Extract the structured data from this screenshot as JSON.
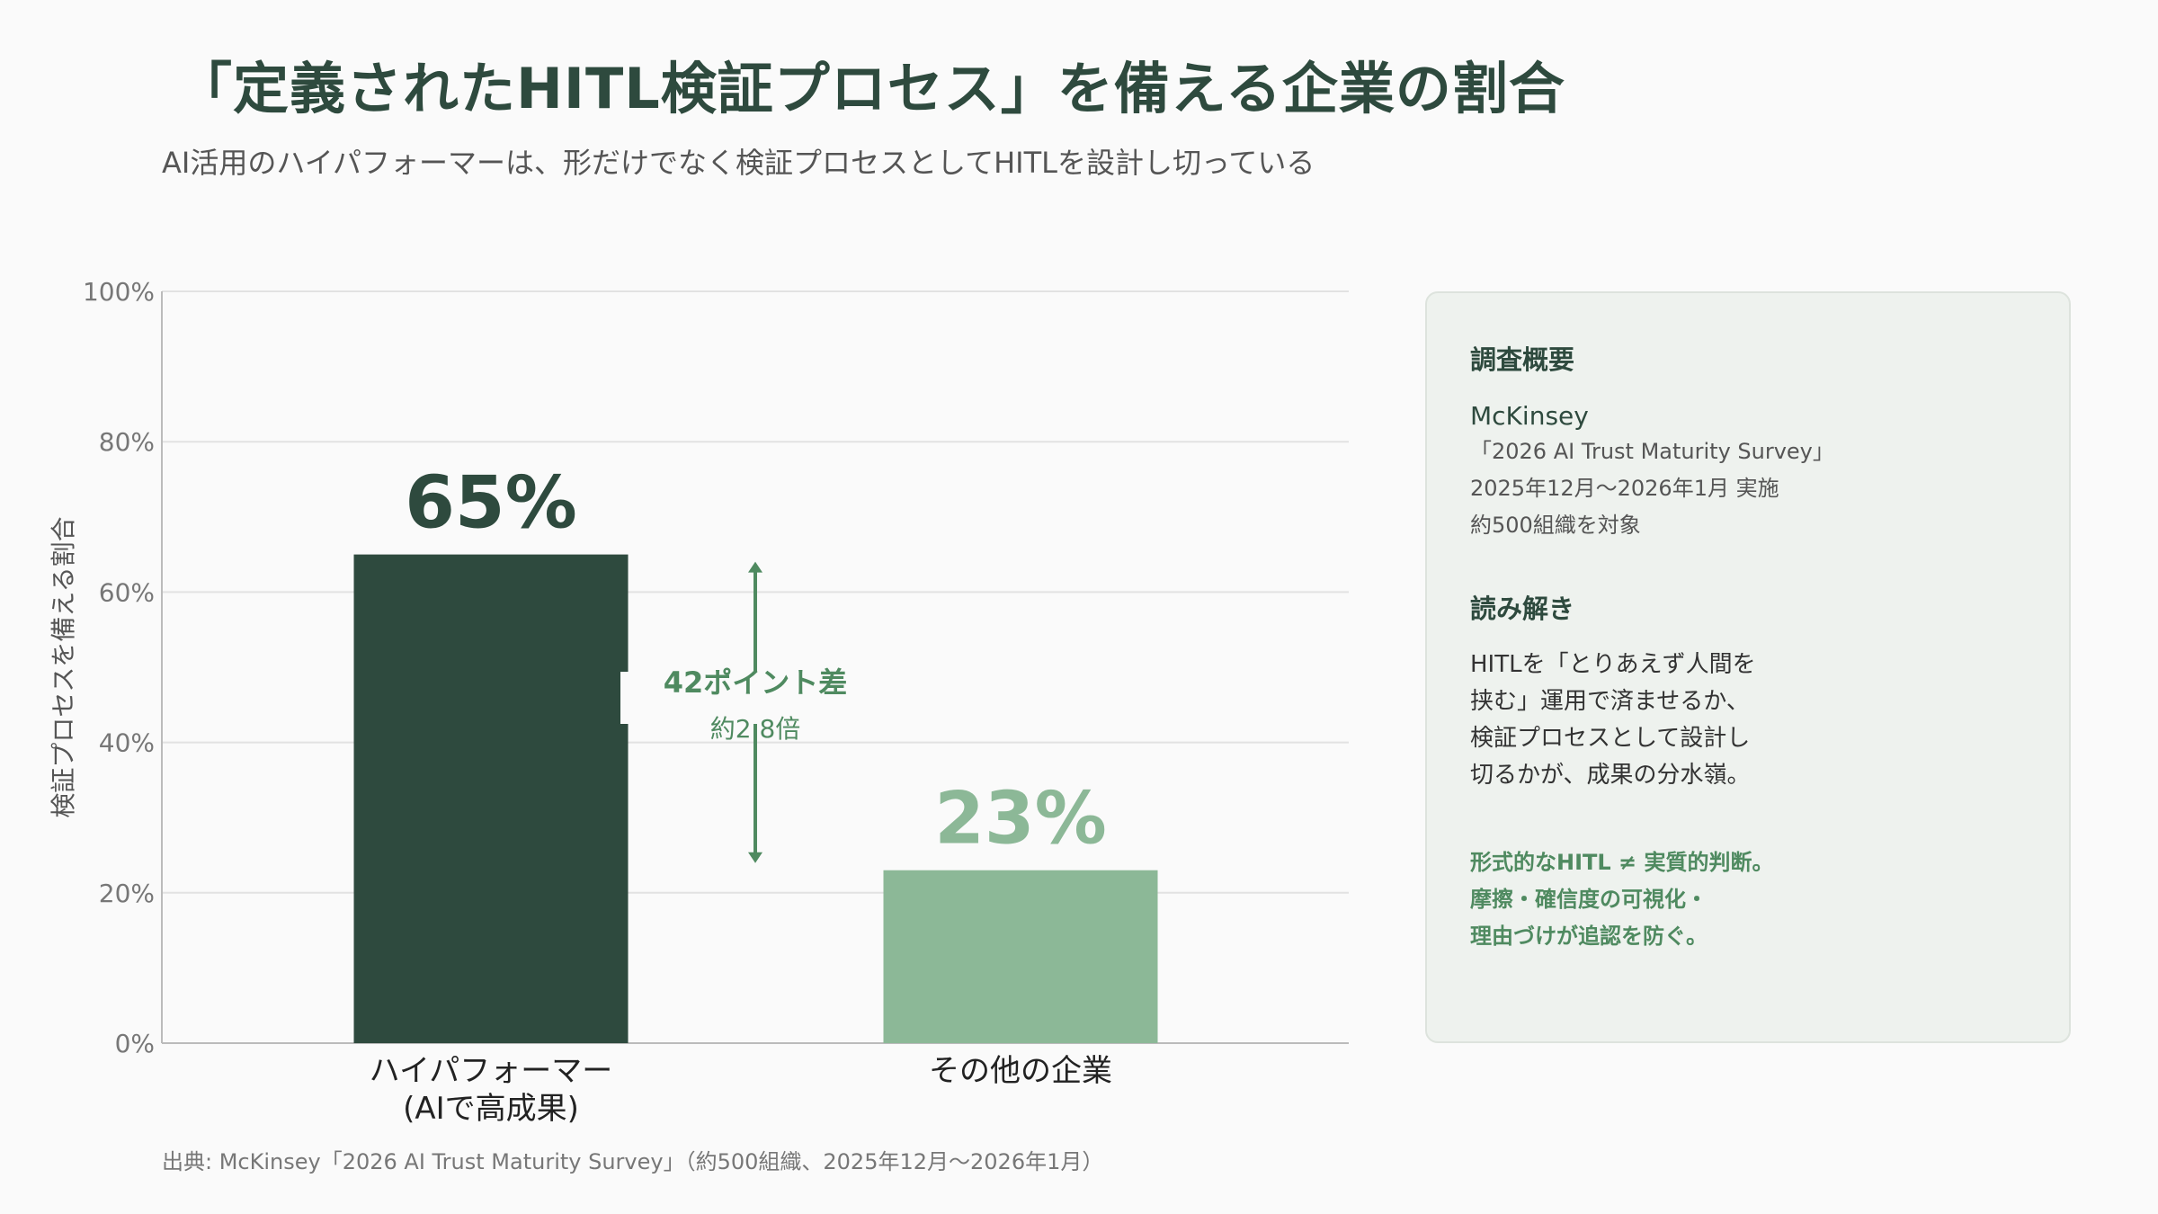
{
  "title": "「定義されたHITL検証プロセス」を備える企業の割合",
  "subtitle": "AI活用のハイパフォーマーは、形だけでなく検証プロセスとしてHITLを設計し切っている",
  "chart_data": {
    "type": "bar",
    "categories": [
      "ハイパフォーマー\n(AIで高成果)",
      "その他の企業"
    ],
    "values": [
      65,
      23
    ],
    "value_labels": [
      "65%",
      "23%"
    ],
    "colors": [
      "#2e4a3e",
      "#8cb897"
    ],
    "title": "",
    "xlabel": "",
    "ylabel": "検証プロセスを備える割合",
    "ylim": [
      0,
      100
    ],
    "yticks": [
      0,
      20,
      40,
      60,
      80,
      100
    ],
    "ytick_labels": [
      "0%",
      "20%",
      "40%",
      "60%",
      "80%",
      "100%"
    ],
    "grid": true,
    "annotation": {
      "from": 23,
      "to": 65,
      "label": "42ポイント差",
      "sublabel": "約2.8倍",
      "color": "#4f8a60"
    }
  },
  "panel": {
    "survey_heading": "調査概要",
    "org": "McKinsey",
    "survey_name": "「2026 AI Trust Maturity Survey」",
    "period": "2025年12月〜2026年1月 実施",
    "target": "約500組織を対象",
    "reading_heading": "読み解き",
    "reading_lines": [
      "HITLを「とりあえず人間を",
      "挟む」運用で済ませるか、",
      "検証プロセスとして設計し",
      "切るかが、成果の分水嶺。"
    ],
    "emphasis_lines": [
      "形式的なHITL ≠ 実質的判断。",
      "摩擦・確信度の可視化・",
      "理由づけが追認を防ぐ。"
    ]
  },
  "source": "出典: McKinsey「2026 AI Trust Maturity Survey」（約500組織、2025年12月〜2026年1月）"
}
